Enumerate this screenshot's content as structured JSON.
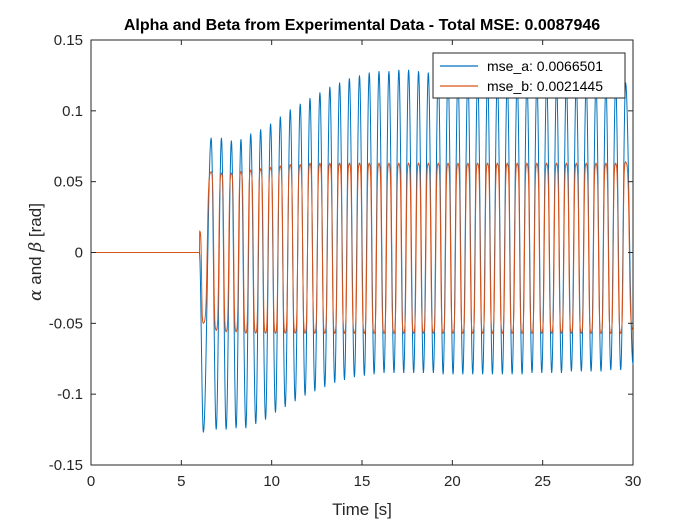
{
  "chart_data": {
    "type": "line",
    "title": "Alpha and Beta from Experimental Data - Total MSE: 0.0087946",
    "xlabel": "Time [s]",
    "ylabel": {
      "sym_a": "α",
      "mid": " and ",
      "sym_b": "β",
      "unit": " [rad]"
    },
    "xlim": [
      0,
      30
    ],
    "ylim": [
      -0.15,
      0.15
    ],
    "xticks": [
      0,
      5,
      10,
      15,
      20,
      25,
      30
    ],
    "yticks": [
      -0.15,
      -0.1,
      -0.05,
      0,
      0.05,
      0.1,
      0.15
    ],
    "xtick_labels": [
      "0",
      "5",
      "10",
      "15",
      "20",
      "25",
      "30"
    ],
    "ytick_labels": [
      "-0.15",
      "-0.1",
      "-0.05",
      "0",
      "0.05",
      "0.1",
      "0.15"
    ],
    "grid": false,
    "legend_position": "top-right",
    "series": [
      {
        "name": "mse_a: 0.0066501",
        "color": "#0072BD",
        "flat_until": 6.0,
        "period": 0.55,
        "phase_t0": 6.0,
        "peak_times": [
          6.65,
          7.22,
          7.77,
          8.3,
          8.84,
          9.39,
          9.94,
          10.48,
          11.03,
          11.58,
          12.12,
          12.67,
          13.22,
          13.76,
          14.3,
          14.86,
          15.4,
          15.94,
          16.49,
          17.04,
          17.58,
          18.13,
          18.67,
          19.22,
          19.76,
          20.31,
          20.86,
          21.4,
          21.95,
          22.49,
          23.04,
          23.59,
          24.13,
          24.68,
          25.22,
          25.77,
          26.31,
          26.86,
          27.41,
          27.95,
          28.5,
          29.04,
          29.59
        ],
        "peak_values": [
          0.081,
          0.081,
          0.079,
          0.08,
          0.084,
          0.087,
          0.091,
          0.096,
          0.101,
          0.105,
          0.109,
          0.113,
          0.117,
          0.12,
          0.123,
          0.125,
          0.127,
          0.128,
          0.128,
          0.129,
          0.129,
          0.128,
          0.127,
          0.127,
          0.126,
          0.125,
          0.125,
          0.124,
          0.123,
          0.123,
          0.122,
          0.122,
          0.121,
          0.121,
          0.121,
          0.12,
          0.12,
          0.12,
          0.12,
          0.119,
          0.119,
          0.119,
          0.12
        ],
        "trough_times": [
          6.22,
          6.93,
          7.48,
          8.03,
          8.57,
          9.12,
          9.66,
          10.21,
          10.75,
          11.3,
          11.85,
          12.39,
          12.94,
          13.49,
          14.03,
          14.58,
          15.13,
          15.67,
          16.22,
          16.77,
          17.31,
          17.86,
          18.4,
          18.95,
          19.49,
          20.04,
          20.58,
          21.13,
          21.68,
          22.22,
          22.77,
          23.31,
          23.86,
          24.41,
          24.95,
          25.5,
          26.04,
          26.59,
          27.14,
          27.68,
          28.23,
          28.77,
          29.32,
          30.0
        ],
        "trough_values": [
          -0.127,
          -0.125,
          -0.125,
          -0.124,
          -0.124,
          -0.121,
          -0.118,
          -0.113,
          -0.109,
          -0.105,
          -0.101,
          -0.098,
          -0.095,
          -0.092,
          -0.09,
          -0.088,
          -0.087,
          -0.086,
          -0.085,
          -0.085,
          -0.085,
          -0.085,
          -0.085,
          -0.085,
          -0.086,
          -0.086,
          -0.086,
          -0.086,
          -0.086,
          -0.086,
          -0.086,
          -0.086,
          -0.086,
          -0.085,
          -0.085,
          -0.085,
          -0.085,
          -0.084,
          -0.084,
          -0.084,
          -0.084,
          -0.083,
          -0.083,
          -0.079
        ]
      },
      {
        "name": "mse_b: 0.0021445",
        "color": "#D95319",
        "flat_until": 6.0,
        "initial_spike": 0.015,
        "plateau_high": [
          0.056,
          0.062
        ],
        "plateau_low": [
          -0.051,
          -0.057
        ],
        "peak_times": [
          6.65,
          7.22,
          7.77,
          8.3,
          8.84,
          9.39,
          9.94,
          10.48,
          11.03,
          11.58,
          12.12,
          12.67,
          13.22,
          13.76,
          14.3,
          14.86,
          15.4,
          15.94,
          16.49,
          17.04,
          17.58,
          18.13,
          18.67,
          19.22,
          19.76,
          20.31,
          20.86,
          21.4,
          21.95,
          22.49,
          23.04,
          23.59,
          24.13,
          24.68,
          25.22,
          25.77,
          26.31,
          26.86,
          27.41,
          27.95,
          28.5,
          29.04,
          29.59
        ],
        "peak_values": [
          0.057,
          0.056,
          0.056,
          0.057,
          0.058,
          0.059,
          0.06,
          0.061,
          0.062,
          0.062,
          0.063,
          0.063,
          0.063,
          0.063,
          0.063,
          0.063,
          0.063,
          0.063,
          0.063,
          0.063,
          0.063,
          0.063,
          0.063,
          0.063,
          0.063,
          0.063,
          0.063,
          0.063,
          0.063,
          0.063,
          0.063,
          0.063,
          0.063,
          0.063,
          0.063,
          0.063,
          0.063,
          0.063,
          0.063,
          0.063,
          0.063,
          0.063,
          0.064
        ],
        "trough_values": [
          -0.05,
          -0.055,
          -0.056,
          -0.056,
          -0.057,
          -0.057,
          -0.057,
          -0.057,
          -0.057,
          -0.057,
          -0.057,
          -0.057,
          -0.057,
          -0.057,
          -0.057,
          -0.057,
          -0.057,
          -0.057,
          -0.057,
          -0.057,
          -0.057,
          -0.057,
          -0.057,
          -0.057,
          -0.057,
          -0.057,
          -0.057,
          -0.057,
          -0.057,
          -0.057,
          -0.057,
          -0.057,
          -0.057,
          -0.057,
          -0.057,
          -0.057,
          -0.057,
          -0.057,
          -0.057,
          -0.057,
          -0.057,
          -0.057,
          -0.057,
          -0.055
        ]
      }
    ]
  }
}
